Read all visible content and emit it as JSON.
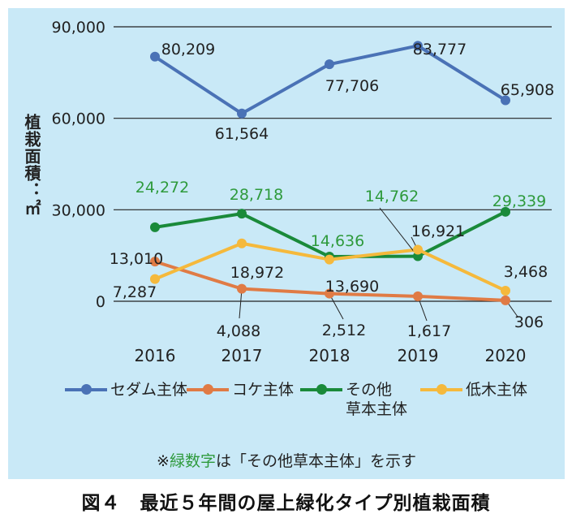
{
  "chart_data": {
    "type": "line",
    "categories": [
      "2016",
      "2017",
      "2018",
      "2019",
      "2020"
    ],
    "ylabel": "植栽面積：㎡",
    "ylim": [
      0,
      90000
    ],
    "yticks": [
      "90,000",
      "60,000",
      "30,000",
      "0"
    ],
    "yticks_values": [
      90000,
      60000,
      30000,
      0
    ],
    "grid": true,
    "legend_position": "bottom",
    "series": [
      {
        "name": "セダム主体",
        "color": "#4a72b6",
        "values": [
          80209,
          61564,
          77706,
          83777,
          65908
        ],
        "labels": [
          "80,209",
          "61,564",
          "77,706",
          "83,777",
          "65,908"
        ],
        "label_color": "#222222"
      },
      {
        "name": "コケ主体",
        "color": "#e07b45",
        "values": [
          13010,
          4088,
          2512,
          1617,
          306
        ],
        "labels": [
          "13,010",
          "4,088",
          "2,512",
          "1,617",
          "306"
        ],
        "label_color": "#222222"
      },
      {
        "name": "その他草本主体",
        "color": "#1a8a3a",
        "values": [
          24272,
          28718,
          14636,
          14762,
          29339
        ],
        "labels": [
          "24,272",
          "28,718",
          "14,636",
          "14,762",
          "29,339"
        ],
        "label_color": "#2e9a3c"
      },
      {
        "name": "低木主体",
        "color": "#f5b93c",
        "values": [
          7287,
          18972,
          13690,
          16921,
          3468
        ],
        "labels": [
          "7,287",
          "18,972",
          "13,690",
          "16,921",
          "3,468"
        ],
        "label_color": "#222222"
      }
    ]
  },
  "legend": {
    "items": [
      {
        "label": "セダム主体"
      },
      {
        "label": "コケ主体"
      },
      {
        "label_line1": "その他",
        "label_line2": "草本主体"
      },
      {
        "label": "低木主体"
      }
    ]
  },
  "note": {
    "prefix": "※",
    "green_text": "緑数字",
    "suffix": "は「その他草本主体」を示す"
  },
  "caption": "図４　最近５年間の屋上緑化タイプ別植栽面積"
}
